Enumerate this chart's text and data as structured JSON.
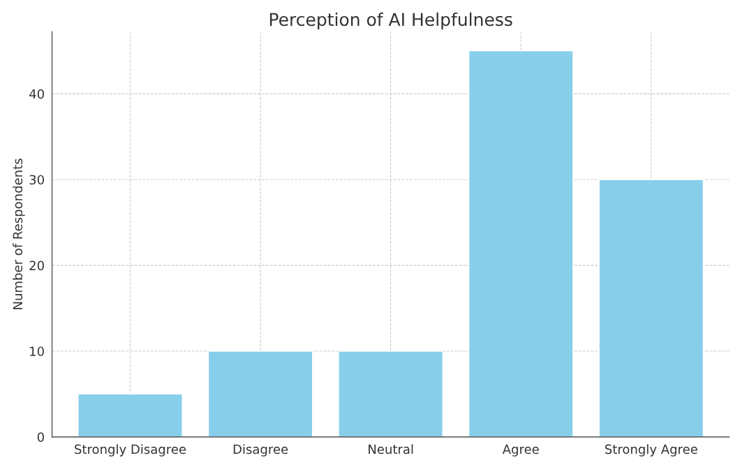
{
  "chart_data": {
    "type": "bar",
    "title": "Perception of AI Helpfulness",
    "ylabel": "Number of Respondents",
    "categories": [
      "Strongly Disagree",
      "Disagree",
      "Neutral",
      "Agree",
      "Strongly Agree"
    ],
    "values": [
      5,
      10,
      10,
      45,
      30
    ],
    "color": "#87ceeb",
    "ylim": [
      0,
      47.25
    ],
    "yticks": [
      0,
      10,
      20,
      30,
      40
    ],
    "grid": true
  }
}
